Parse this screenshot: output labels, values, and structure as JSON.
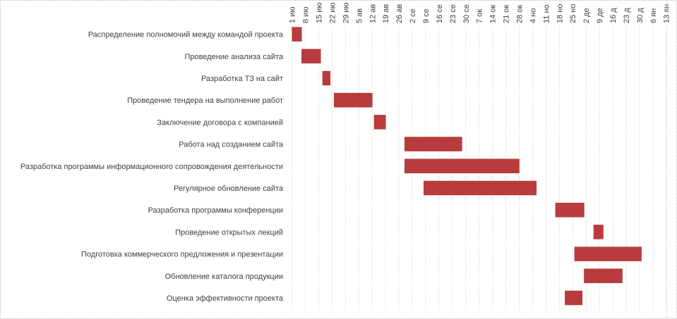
{
  "chart_data": {
    "type": "gantt",
    "title": "",
    "bar_color": "#b83c3d",
    "grid": "vertical dotted, weekly",
    "x_ticks": [
      "1 ию",
      "8 ию",
      "15 ию",
      "22 ию",
      "29 ию",
      "5 ав",
      "12 ав",
      "19 ав",
      "26 ав",
      "2 се",
      "9 се",
      "16 се",
      "23 се",
      "30 се",
      "7 ок",
      "14 ок",
      "21 ок",
      "28 ок",
      "4 но",
      "11 но",
      "18 но",
      "25 но",
      "2 де",
      "9 де",
      "16 д",
      "23 д",
      "30 д",
      "6 ян",
      "13 ян"
    ],
    "x_axis_start": "1 Jul",
    "x_axis_unit": "days from 1 Jul",
    "tasks": [
      {
        "name": "Распределение полномочий между командой проекта",
        "start": 0,
        "end": 5
      },
      {
        "name": "Проведение анализа сайта",
        "start": 5,
        "end": 15
      },
      {
        "name": "Разработка ТЗ на сайт",
        "start": 16,
        "end": 20
      },
      {
        "name": "Проведение тендера на выполнение работ",
        "start": 22,
        "end": 42
      },
      {
        "name": "Заключение договора с компанией",
        "start": 43,
        "end": 49
      },
      {
        "name": "Работа над созданием сайта",
        "start": 59,
        "end": 89
      },
      {
        "name": "Разработка программы информационного сопровождения деятельности",
        "start": 59,
        "end": 119
      },
      {
        "name": "Регулярное обновление сайта",
        "start": 69,
        "end": 128
      },
      {
        "name": "Разработка программы конференции",
        "start": 138,
        "end": 153
      },
      {
        "name": "Проведение открытых лекций",
        "start": 158,
        "end": 163
      },
      {
        "name": "Подготовка коммерческого предложения и презентации",
        "start": 148,
        "end": 183
      },
      {
        "name": "Обновление каталога продукции",
        "start": 153,
        "end": 173
      },
      {
        "name": "Оценка эффективности проекта",
        "start": 143,
        "end": 152
      }
    ]
  }
}
